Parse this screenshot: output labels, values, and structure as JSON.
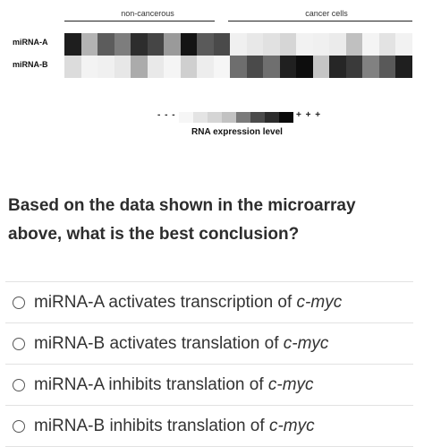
{
  "figure": {
    "group_labels": [
      "non-cancerous",
      "cancer cells"
    ],
    "rows": [
      {
        "label": "miRNA-A",
        "cells": [
          "#1e1e1e",
          "#b3b3b3",
          "#5c5c5c",
          "#7d7d7d",
          "#2d2d2d",
          "#454545",
          "#9a9a9a",
          "#141414",
          "#5a5a5a",
          "#4a4a4a",
          "#f0f0f0",
          "#e8e8e8",
          "#e1e1e1",
          "#d6d6d6",
          "#f2f2f2",
          "#f0f0f0",
          "#ebebeb",
          "#c0c0c0",
          "#f4f4f4",
          "#e3e3e3",
          "#f2f2f2"
        ]
      },
      {
        "label": "miRNA-B",
        "cells": [
          "#dcdcdc",
          "#f3f3f3",
          "#f0f0f0",
          "#e7e7e7",
          "#ababab",
          "#e9e9e9",
          "#f5f5f5",
          "#cfcfcf",
          "#ededed",
          "#f6f6f6",
          "#6e6e6e",
          "#4a4a4a",
          "#6f6f6f",
          "#202020",
          "#0d0d0d",
          "#c5c5c5",
          "#262626",
          "#3a3a3a",
          "#818181",
          "#595959",
          "#1f1f1f"
        ]
      }
    ],
    "legend": {
      "low_symbol": "- - -",
      "high_symbol": "+ + +",
      "scale": [
        "#f6f6f6",
        "#e4e4e4",
        "#d5d5d5",
        "#c2c2c2",
        "#7a7a7a",
        "#4b4b4b",
        "#2c2c2c",
        "#0a0a0a"
      ],
      "title": "RNA expression level"
    }
  },
  "question": "Based on the data shown in the microarray above, what is the best conclusion?",
  "options": [
    {
      "prefix": "miRNA-A activates transcription of ",
      "gene": "c-myc"
    },
    {
      "prefix": "miRNA-B activates translation of ",
      "gene": "c-myc"
    },
    {
      "prefix": "miRNA-A inhibits translation of ",
      "gene": "c-myc"
    },
    {
      "prefix": "miRNA-B inhibits translation of ",
      "gene": "c-myc"
    }
  ]
}
